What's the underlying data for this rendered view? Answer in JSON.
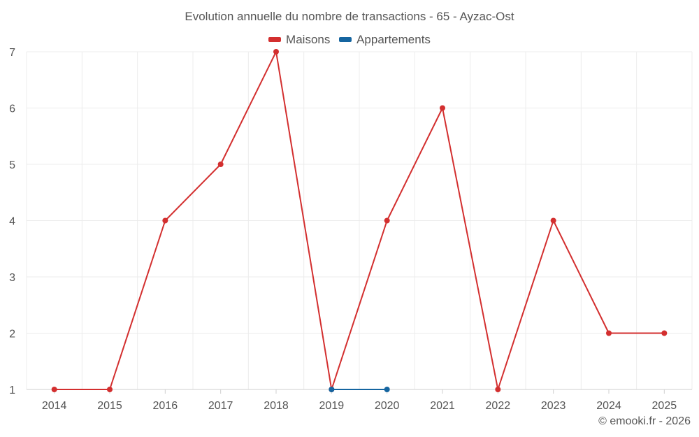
{
  "chart_data": {
    "type": "line",
    "title": "Evolution annuelle du nombre de transactions - 65 - Ayzac-Ost",
    "xlabel": "",
    "ylabel": "",
    "categories": [
      "2014",
      "2015",
      "2016",
      "2017",
      "2018",
      "2019",
      "2020",
      "2021",
      "2022",
      "2023",
      "2024",
      "2025"
    ],
    "ylim": [
      1,
      7
    ],
    "yticks": [
      1,
      2,
      3,
      4,
      5,
      6,
      7
    ],
    "grid": true,
    "legend_position": "top-center",
    "series": [
      {
        "name": "Maisons",
        "color": "#d32f2f",
        "values": [
          1,
          1,
          4,
          5,
          7,
          1,
          4,
          6,
          1,
          4,
          2,
          2
        ]
      },
      {
        "name": "Appartements",
        "color": "#1565a0",
        "values": [
          null,
          null,
          null,
          null,
          null,
          1,
          1,
          null,
          null,
          null,
          null,
          null
        ]
      }
    ]
  },
  "credit": "© emooki.fr - 2026"
}
